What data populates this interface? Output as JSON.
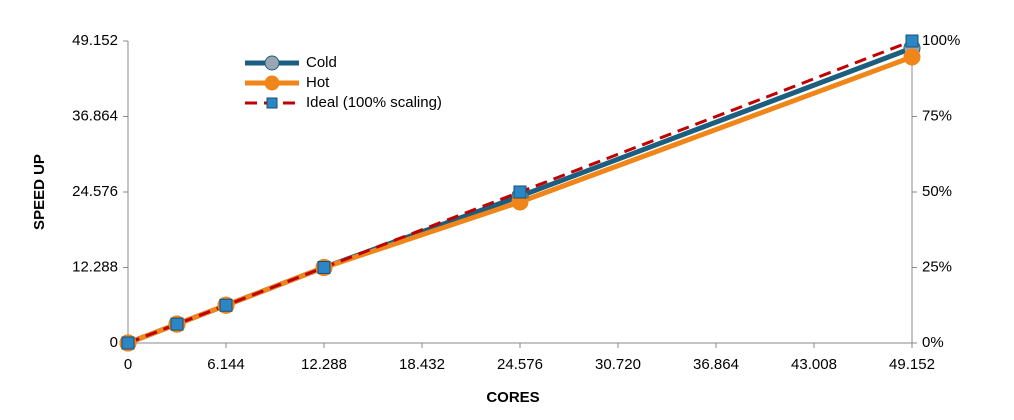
{
  "chart_data": {
    "type": "line",
    "xlabel": "CORES",
    "ylabel": "SPEED UP",
    "x": [
      0,
      3072,
      6144,
      12288,
      24576,
      49152
    ],
    "series": [
      {
        "name": "Cold",
        "color": "#1b5e80",
        "marker": "circle",
        "marker_color": "#9aa6b2",
        "dashed": false,
        "values": [
          0,
          3072,
          6144,
          12288,
          23900,
          48000
        ]
      },
      {
        "name": "Hot",
        "color": "#f0861a",
        "marker": "circle",
        "marker_color": "#f0861a",
        "dashed": false,
        "values": [
          0,
          3072,
          6144,
          12288,
          22950,
          46550
        ]
      },
      {
        "name": "Ideal (100% scaling)",
        "color": "#c00000",
        "marker": "square",
        "marker_color": "#2a86c4",
        "dashed": true,
        "values": [
          0,
          3072,
          6144,
          12288,
          24576,
          49152
        ]
      }
    ],
    "xlim": [
      0,
      49152
    ],
    "xticks": [
      0,
      {
        "value": 6144,
        "label": "6.144"
      },
      {
        "value": 12288,
        "label": "12.288"
      },
      {
        "value": 18432,
        "label": "18.432"
      },
      {
        "value": 24576,
        "label": "24.576"
      },
      {
        "value": 30720,
        "label": "30.720"
      },
      {
        "value": 36864,
        "label": "36.864"
      },
      {
        "value": 43008,
        "label": "43.008"
      },
      {
        "value": 49152,
        "label": "49.152"
      }
    ],
    "ylim": [
      0,
      49152
    ],
    "yticks": [
      0,
      {
        "value": 12288,
        "label": "12.288"
      },
      {
        "value": 24576,
        "label": "24.576"
      },
      {
        "value": 36864,
        "label": "36.864"
      },
      {
        "value": 49152,
        "label": "49.152"
      }
    ],
    "y2lim": [
      0,
      100
    ],
    "y2ticks": [
      {
        "value": 0,
        "label": "0%"
      },
      {
        "value": 25,
        "label": "25%"
      },
      {
        "value": 50,
        "label": "50%"
      },
      {
        "value": 75,
        "label": "75%"
      },
      {
        "value": 100,
        "label": "100%"
      }
    ],
    "grid": false,
    "legend": "upper left"
  }
}
